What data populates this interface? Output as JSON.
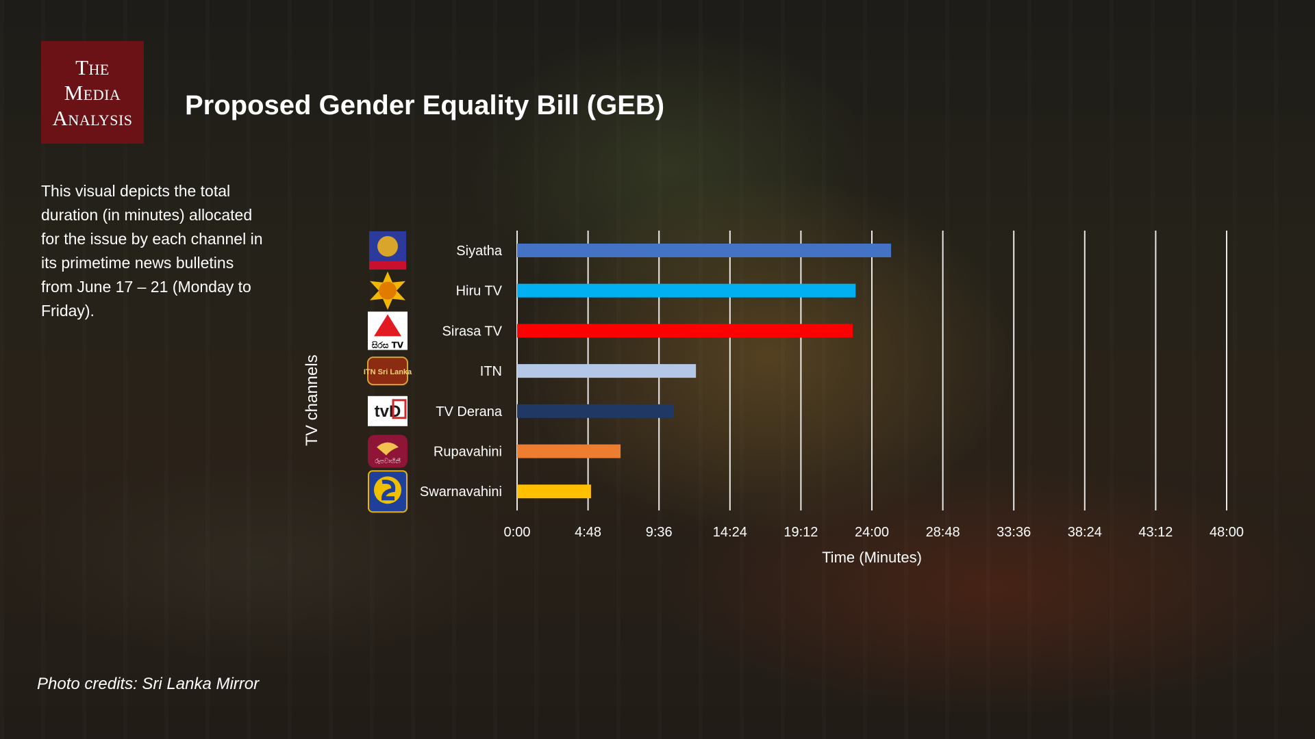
{
  "header": {
    "logo_lines": [
      "The",
      "Media",
      "Analysis"
    ],
    "title": "Proposed Gender Equality Bill (GEB)"
  },
  "description": "This visual depicts the total duration (in minutes) allocated for the issue by each channel in its primetime news bulletins from June 17 – 21 (Monday to Friday).",
  "credits": "Photo credits: Sri Lanka Mirror",
  "chart_data": {
    "type": "bar",
    "orientation": "horizontal",
    "xlabel": "Time (Minutes)",
    "ylabel": "TV channels",
    "categories": [
      "Siyatha",
      "Hiru TV",
      "Sirasa TV",
      "ITN",
      "TV Derana",
      "Rupavahini",
      "Swarnavahini"
    ],
    "values_minutes": [
      25.3,
      22.9,
      22.7,
      12.1,
      10.6,
      7.0,
      5.0
    ],
    "bar_colors": [
      "#4472c4",
      "#00b0f0",
      "#ff0000",
      "#b4c7e7",
      "#203864",
      "#ed7d31",
      "#ffc000"
    ],
    "x_ticks": [
      "0:00",
      "4:48",
      "9:36",
      "14:24",
      "19:12",
      "24:00",
      "28:48",
      "33:36",
      "38:24",
      "43:12",
      "48:00"
    ],
    "xlim_minutes": [
      0,
      48
    ],
    "grid": "vertical",
    "channel_logo_texts": [
      "සිරස TV",
      "ITN Sri Lanka",
      "tvD",
      "රූපවාහිනී"
    ]
  }
}
